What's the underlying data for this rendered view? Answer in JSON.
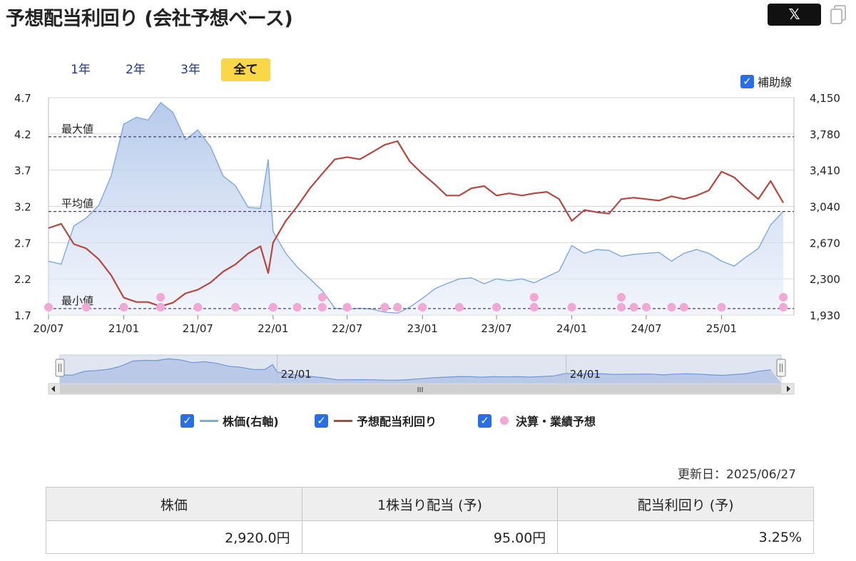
{
  "header": {
    "title": "予想配当利回り (会社予想ベース)",
    "share_label": "𝕏"
  },
  "periods": [
    "1年",
    "2年",
    "3年",
    "全て"
  ],
  "aux_toggle": {
    "label": "補助線",
    "checked": true
  },
  "legend": [
    {
      "label": "株価(右軸)",
      "color": "#7fa8e0"
    },
    {
      "label": "予想配当利回り",
      "color": "#b5473e"
    },
    {
      "label": "決算・業績予想",
      "color": "#f1a8d4"
    }
  ],
  "navigator": {
    "labels": [
      "22/01",
      "24/01"
    ],
    "scroll_grip": "III"
  },
  "chart_data": {
    "type": "line",
    "x_ticks": [
      "20/07",
      "21/01",
      "21/07",
      "22/01",
      "22/07",
      "23/01",
      "23/07",
      "24/01",
      "24/07",
      "25/01"
    ],
    "y_left": {
      "ticks": [
        "4.7",
        "4.2",
        "3.7",
        "3.2",
        "2.7",
        "2.2",
        "1.7"
      ],
      "min": 1.7,
      "max": 4.7
    },
    "y_right": {
      "ticks": [
        "4,150",
        "3,780",
        "3,410",
        "3,040",
        "2,670",
        "2,300",
        "1,930"
      ],
      "min": 1930,
      "max": 4150
    },
    "reference_lines": [
      {
        "label": "最大値",
        "value": 4.16
      },
      {
        "label": "平均値",
        "value": 3.13
      },
      {
        "label": "最小値",
        "value": 1.79
      }
    ],
    "grid": true,
    "series": [
      {
        "name": "株価(右軸)",
        "axis": "right",
        "x": [
          "2020-07",
          "2020-08",
          "2020-09",
          "2020-10",
          "2020-11",
          "2020-12",
          "2021-01",
          "2021-02",
          "2021-03",
          "2021-04",
          "2021-05",
          "2021-06",
          "2021-07",
          "2021-08",
          "2021-09",
          "2021-10",
          "2021-11",
          "2021-12",
          "2021-12-20",
          "2022-01",
          "2022-02",
          "2022-03",
          "2022-04",
          "2022-05",
          "2022-06",
          "2022-07",
          "2022-08",
          "2022-09",
          "2022-10",
          "2022-11",
          "2022-12",
          "2023-01",
          "2023-02",
          "2023-03",
          "2023-04",
          "2023-05",
          "2023-06",
          "2023-07",
          "2023-08",
          "2023-09",
          "2023-10",
          "2023-11",
          "2023-12",
          "2024-01",
          "2024-02",
          "2024-03",
          "2024-04",
          "2024-05",
          "2024-06",
          "2024-07",
          "2024-08",
          "2024-09",
          "2024-10",
          "2024-11",
          "2024-12",
          "2025-01",
          "2025-02",
          "2025-03",
          "2025-04",
          "2025-05",
          "2025-06"
        ],
        "values": [
          2480,
          2450,
          2840,
          2920,
          3050,
          3350,
          3880,
          3950,
          3920,
          4100,
          4000,
          3720,
          3820,
          3650,
          3350,
          3250,
          3030,
          3020,
          3520,
          2780,
          2560,
          2420,
          2300,
          2180,
          2000,
          1990,
          2000,
          1990,
          1960,
          1950,
          2010,
          2100,
          2200,
          2250,
          2300,
          2310,
          2250,
          2300,
          2280,
          2300,
          2260,
          2320,
          2380,
          2640,
          2560,
          2600,
          2590,
          2530,
          2550,
          2560,
          2570,
          2480,
          2560,
          2600,
          2560,
          2480,
          2430,
          2520,
          2610,
          2850,
          2990
        ]
      },
      {
        "name": "予想配当利回り",
        "axis": "left",
        "x": [
          "2020-07",
          "2020-08",
          "2020-09",
          "2020-10",
          "2020-11",
          "2020-12",
          "2021-01",
          "2021-02",
          "2021-03",
          "2021-04",
          "2021-05",
          "2021-06",
          "2021-07",
          "2021-08",
          "2021-09",
          "2021-10",
          "2021-11",
          "2021-12",
          "2021-12-20",
          "2022-01",
          "2022-02",
          "2022-03",
          "2022-04",
          "2022-05",
          "2022-06",
          "2022-07",
          "2022-08",
          "2022-09",
          "2022-10",
          "2022-11",
          "2022-12",
          "2023-01",
          "2023-02",
          "2023-03",
          "2023-04",
          "2023-05",
          "2023-06",
          "2023-07",
          "2023-08",
          "2023-09",
          "2023-10",
          "2023-11",
          "2023-12",
          "2024-01",
          "2024-02",
          "2024-03",
          "2024-04",
          "2024-05",
          "2024-06",
          "2024-07",
          "2024-08",
          "2024-09",
          "2024-10",
          "2024-11",
          "2024-12",
          "2025-01",
          "2025-02",
          "2025-03",
          "2025-04",
          "2025-05",
          "2025-06"
        ],
        "values": [
          2.9,
          2.96,
          2.68,
          2.62,
          2.47,
          2.25,
          1.94,
          1.88,
          1.88,
          1.82,
          1.87,
          2.0,
          2.05,
          2.15,
          2.3,
          2.4,
          2.55,
          2.65,
          2.28,
          2.7,
          3.0,
          3.2,
          3.45,
          3.65,
          3.85,
          3.88,
          3.85,
          3.95,
          4.05,
          4.1,
          3.82,
          3.65,
          3.5,
          3.35,
          3.35,
          3.45,
          3.48,
          3.35,
          3.38,
          3.35,
          3.38,
          3.4,
          3.3,
          3.0,
          3.15,
          3.12,
          3.1,
          3.3,
          3.32,
          3.3,
          3.28,
          3.34,
          3.3,
          3.35,
          3.42,
          3.68,
          3.6,
          3.45,
          3.3,
          3.55,
          3.25
        ]
      }
    ],
    "earnings_markers": [
      {
        "x": "2020-07",
        "count": 1
      },
      {
        "x": "2020-10",
        "count": 1
      },
      {
        "x": "2021-01",
        "count": 1
      },
      {
        "x": "2021-04",
        "count": 2
      },
      {
        "x": "2021-07",
        "count": 1
      },
      {
        "x": "2021-10",
        "count": 1
      },
      {
        "x": "2022-01",
        "count": 1
      },
      {
        "x": "2022-03",
        "count": 1
      },
      {
        "x": "2022-05",
        "count": 2
      },
      {
        "x": "2022-07",
        "count": 1
      },
      {
        "x": "2022-10",
        "count": 1
      },
      {
        "x": "2022-11",
        "count": 1
      },
      {
        "x": "2023-01",
        "count": 1
      },
      {
        "x": "2023-04",
        "count": 1
      },
      {
        "x": "2023-07",
        "count": 1
      },
      {
        "x": "2023-10",
        "count": 2
      },
      {
        "x": "2024-01",
        "count": 1
      },
      {
        "x": "2024-05",
        "count": 2
      },
      {
        "x": "2024-06",
        "count": 1
      },
      {
        "x": "2024-07",
        "count": 1
      },
      {
        "x": "2024-09",
        "count": 1
      },
      {
        "x": "2024-10",
        "count": 1
      },
      {
        "x": "2025-01",
        "count": 1
      },
      {
        "x": "2025-06",
        "count": 2
      }
    ]
  },
  "summary": {
    "updated": "更新日：2025/06/27",
    "headers": [
      "株価",
      "1株当り配当 (予)",
      "配当利回り (予)"
    ],
    "values": [
      "2,920.0円",
      "95.00円",
      "3.25%"
    ]
  }
}
